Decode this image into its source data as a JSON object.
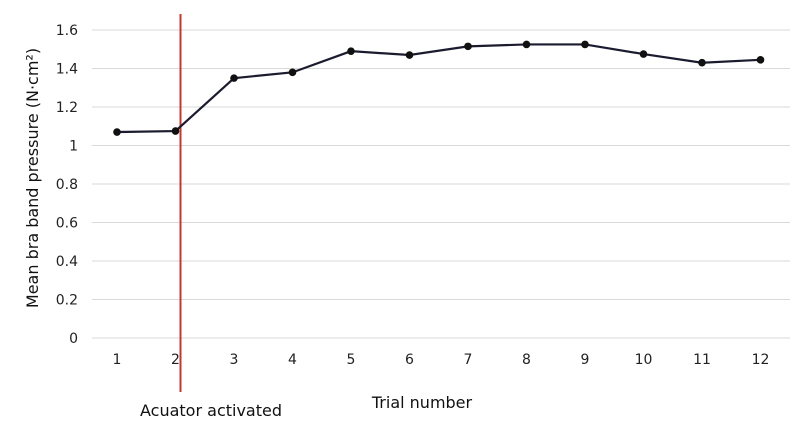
{
  "chart_data": {
    "type": "line",
    "title": "",
    "xlabel": "Trial number",
    "ylabel": "Mean bra band pressure (N·cm²)",
    "categories": [
      "1",
      "2",
      "3",
      "4",
      "5",
      "6",
      "7",
      "8",
      "9",
      "10",
      "11",
      "12"
    ],
    "series": [
      {
        "values": [
          1.07,
          1.075,
          1.35,
          1.38,
          1.49,
          1.47,
          1.515,
          1.525,
          1.525,
          1.475,
          1.43,
          1.445
        ]
      }
    ],
    "y_ticks": [
      "0",
      "0.2",
      "0.4",
      "0.6",
      "0.8",
      "1",
      "1.2",
      "1.4",
      "1.6"
    ],
    "ylim": [
      0,
      1.6
    ],
    "grid": true,
    "legend": "none",
    "annotation": {
      "label": "Acuator activated",
      "at_category": "2"
    },
    "colors": {
      "line": "#1b1b2f",
      "marker": "#111111",
      "annotation_line": "#c0392b",
      "grid": "#d9d9d9"
    }
  }
}
